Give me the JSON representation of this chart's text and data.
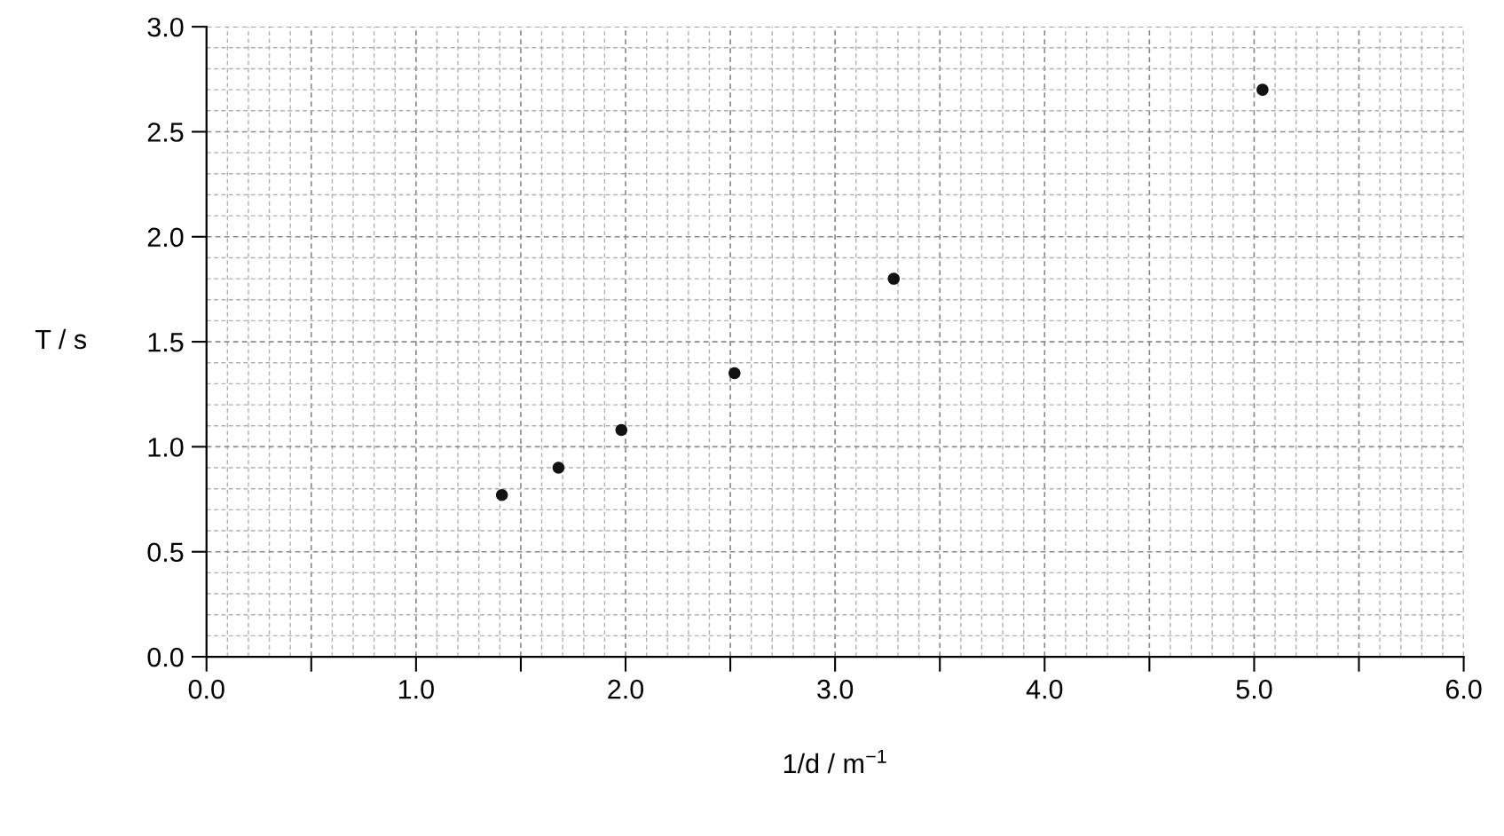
{
  "chart_data": {
    "type": "scatter",
    "xlabel": "1/d / m$^{−1}$",
    "ylabel": "T / s",
    "x": [
      1.41,
      1.68,
      1.98,
      2.52,
      3.28,
      5.04
    ],
    "series": [
      {
        "color": "#111111",
        "values": [
          0.77,
          0.9,
          1.08,
          1.35,
          1.8,
          2.7
        ]
      }
    ],
    "marker": "circle",
    "grid": true,
    "xlim": [
      0,
      6
    ],
    "ylim": [
      0,
      3
    ],
    "xticks": [
      {
        "value": 0,
        "label": "0.0"
      },
      {
        "value": 0.5,
        "label": null
      },
      {
        "value": 1.0,
        "label": "1.0"
      },
      {
        "value": 1.5,
        "label": null
      },
      {
        "value": 2.0,
        "label": "2.0"
      },
      {
        "value": 2.5,
        "label": null
      },
      {
        "value": 3.0,
        "label": "3.0"
      },
      {
        "value": 3.5,
        "label": null
      },
      {
        "value": 4.0,
        "label": "4.0"
      },
      {
        "value": 4.5,
        "label": null
      },
      {
        "value": 5.0,
        "label": "5.0"
      },
      {
        "value": 5.5,
        "label": null
      },
      {
        "value": 6.0,
        "label": "6.0"
      }
    ],
    "yticks": [
      {
        "value": 0,
        "label": "0.0"
      },
      0.5,
      {
        "value": 1.0,
        "label": "1.0"
      },
      1.5,
      {
        "value": 2.0,
        "label": "2.0"
      },
      2.5,
      {
        "value": 3.0,
        "label": "3.0"
      }
    ]
  }
}
